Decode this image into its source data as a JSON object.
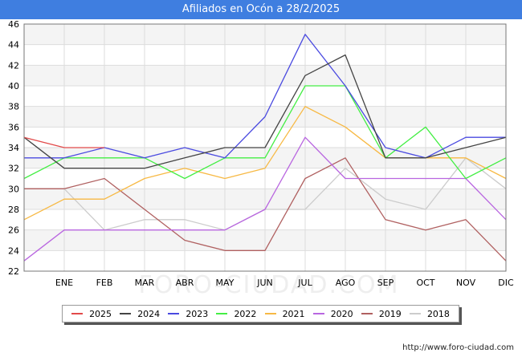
{
  "title": "Afiliados en Ocón a 28/2/2025",
  "watermark": "FORO-CIUDAD.COM",
  "source": "http://www.foro-ciudad.com",
  "chart_data": {
    "type": "line",
    "title": "Afiliados en Ocón a 28/2/2025",
    "categories": [
      "",
      "ENE",
      "FEB",
      "MAR",
      "ABR",
      "MAY",
      "JUN",
      "JUL",
      "AGO",
      "SEP",
      "OCT",
      "NOV",
      "DIC"
    ],
    "ylim": [
      22,
      46
    ],
    "yticks": [
      22,
      24,
      26,
      28,
      30,
      32,
      34,
      36,
      38,
      40,
      42,
      44,
      46
    ],
    "grid": true,
    "legend_position": "bottom",
    "series": [
      {
        "name": "2025",
        "color": "#e24a4a",
        "values": [
          35,
          34,
          34,
          null,
          null,
          null,
          null,
          null,
          null,
          null,
          null,
          null,
          null
        ]
      },
      {
        "name": "2024",
        "color": "#444444",
        "values": [
          35,
          32,
          32,
          32,
          33,
          34,
          34,
          41,
          43,
          33,
          33,
          34,
          35
        ]
      },
      {
        "name": "2023",
        "color": "#4a4ae0",
        "values": [
          33,
          33,
          34,
          33,
          34,
          33,
          37,
          45,
          40,
          34,
          33,
          35,
          35
        ]
      },
      {
        "name": "2022",
        "color": "#44ee44",
        "values": [
          31,
          33,
          33,
          33,
          31,
          33,
          33,
          40,
          40,
          33,
          36,
          31,
          33
        ]
      },
      {
        "name": "2021",
        "color": "#f7b944",
        "values": [
          27,
          29,
          29,
          31,
          32,
          31,
          32,
          38,
          36,
          33,
          33,
          33,
          31
        ]
      },
      {
        "name": "2020",
        "color": "#b966e0",
        "values": [
          23,
          26,
          26,
          26,
          26,
          26,
          28,
          35,
          31,
          31,
          31,
          31,
          27
        ]
      },
      {
        "name": "2019",
        "color": "#b06060",
        "values": [
          30,
          30,
          31,
          28,
          25,
          24,
          24,
          31,
          33,
          27,
          26,
          27,
          23
        ]
      },
      {
        "name": "2018",
        "color": "#cccccc",
        "values": [
          30,
          30,
          26,
          27,
          27,
          26,
          28,
          28,
          32,
          29,
          28,
          33,
          30
        ]
      }
    ]
  }
}
